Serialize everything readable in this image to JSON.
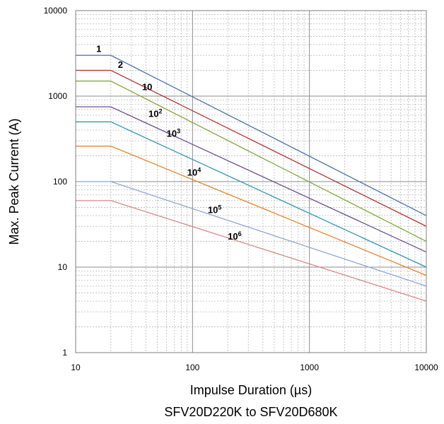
{
  "chart_data": {
    "type": "line",
    "title": "",
    "xlabel": "Impulse Duration (µs)",
    "ylabel": "Max. Peak Current (A)",
    "caption": "SFV20D220K to SFV20D680K",
    "x_scale": "log",
    "y_scale": "log",
    "xlim": [
      10,
      10000
    ],
    "ylim": [
      1,
      10000
    ],
    "x_ticks": [
      "10",
      "100",
      "1000",
      "10000"
    ],
    "y_ticks": [
      "1",
      "10",
      "100",
      "1000",
      "10000"
    ],
    "grid": true,
    "series": [
      {
        "name": "1",
        "label_base": "1",
        "label_sup": "",
        "color": "#4a73a8",
        "x": [
          10,
          20,
          10000
        ],
        "y": [
          3000,
          3000,
          40
        ]
      },
      {
        "name": "2",
        "label_base": "2",
        "label_sup": "",
        "color": "#b03a35",
        "x": [
          10,
          20,
          10000
        ],
        "y": [
          2000,
          2000,
          30
        ]
      },
      {
        "name": "10",
        "label_base": "10",
        "label_sup": "",
        "color": "#86a83c",
        "x": [
          10,
          20,
          10000
        ],
        "y": [
          1500,
          1500,
          20
        ]
      },
      {
        "name": "10^2",
        "label_base": "10",
        "label_sup": "2",
        "color": "#6c4f93",
        "x": [
          10,
          20,
          10000
        ],
        "y": [
          750,
          750,
          15
        ]
      },
      {
        "name": "10^3",
        "label_base": "10",
        "label_sup": "3",
        "color": "#2e97b4",
        "x": [
          10,
          20,
          10000
        ],
        "y": [
          500,
          500,
          10
        ]
      },
      {
        "name": "10^4",
        "label_base": "10",
        "label_sup": "4",
        "color": "#e8842c",
        "x": [
          10,
          20,
          10000
        ],
        "y": [
          260,
          260,
          8
        ]
      },
      {
        "name": "10^5",
        "label_base": "10",
        "label_sup": "5",
        "color": "#8ea8d4",
        "x": [
          10,
          20,
          10000
        ],
        "y": [
          100,
          100,
          6
        ]
      },
      {
        "name": "10^6",
        "label_base": "10",
        "label_sup": "6",
        "color": "#d58b88",
        "x": [
          10,
          20,
          10000
        ],
        "y": [
          60,
          60,
          4
        ]
      }
    ],
    "curve_labels_at": [
      {
        "x": 15,
        "y": 3300
      },
      {
        "x": 23,
        "y": 2150
      },
      {
        "x": 37,
        "y": 1180
      },
      {
        "x": 42,
        "y": 570
      },
      {
        "x": 60,
        "y": 335
      },
      {
        "x": 90,
        "y": 118
      },
      {
        "x": 135,
        "y": 43
      },
      {
        "x": 200,
        "y": 21
      }
    ]
  }
}
